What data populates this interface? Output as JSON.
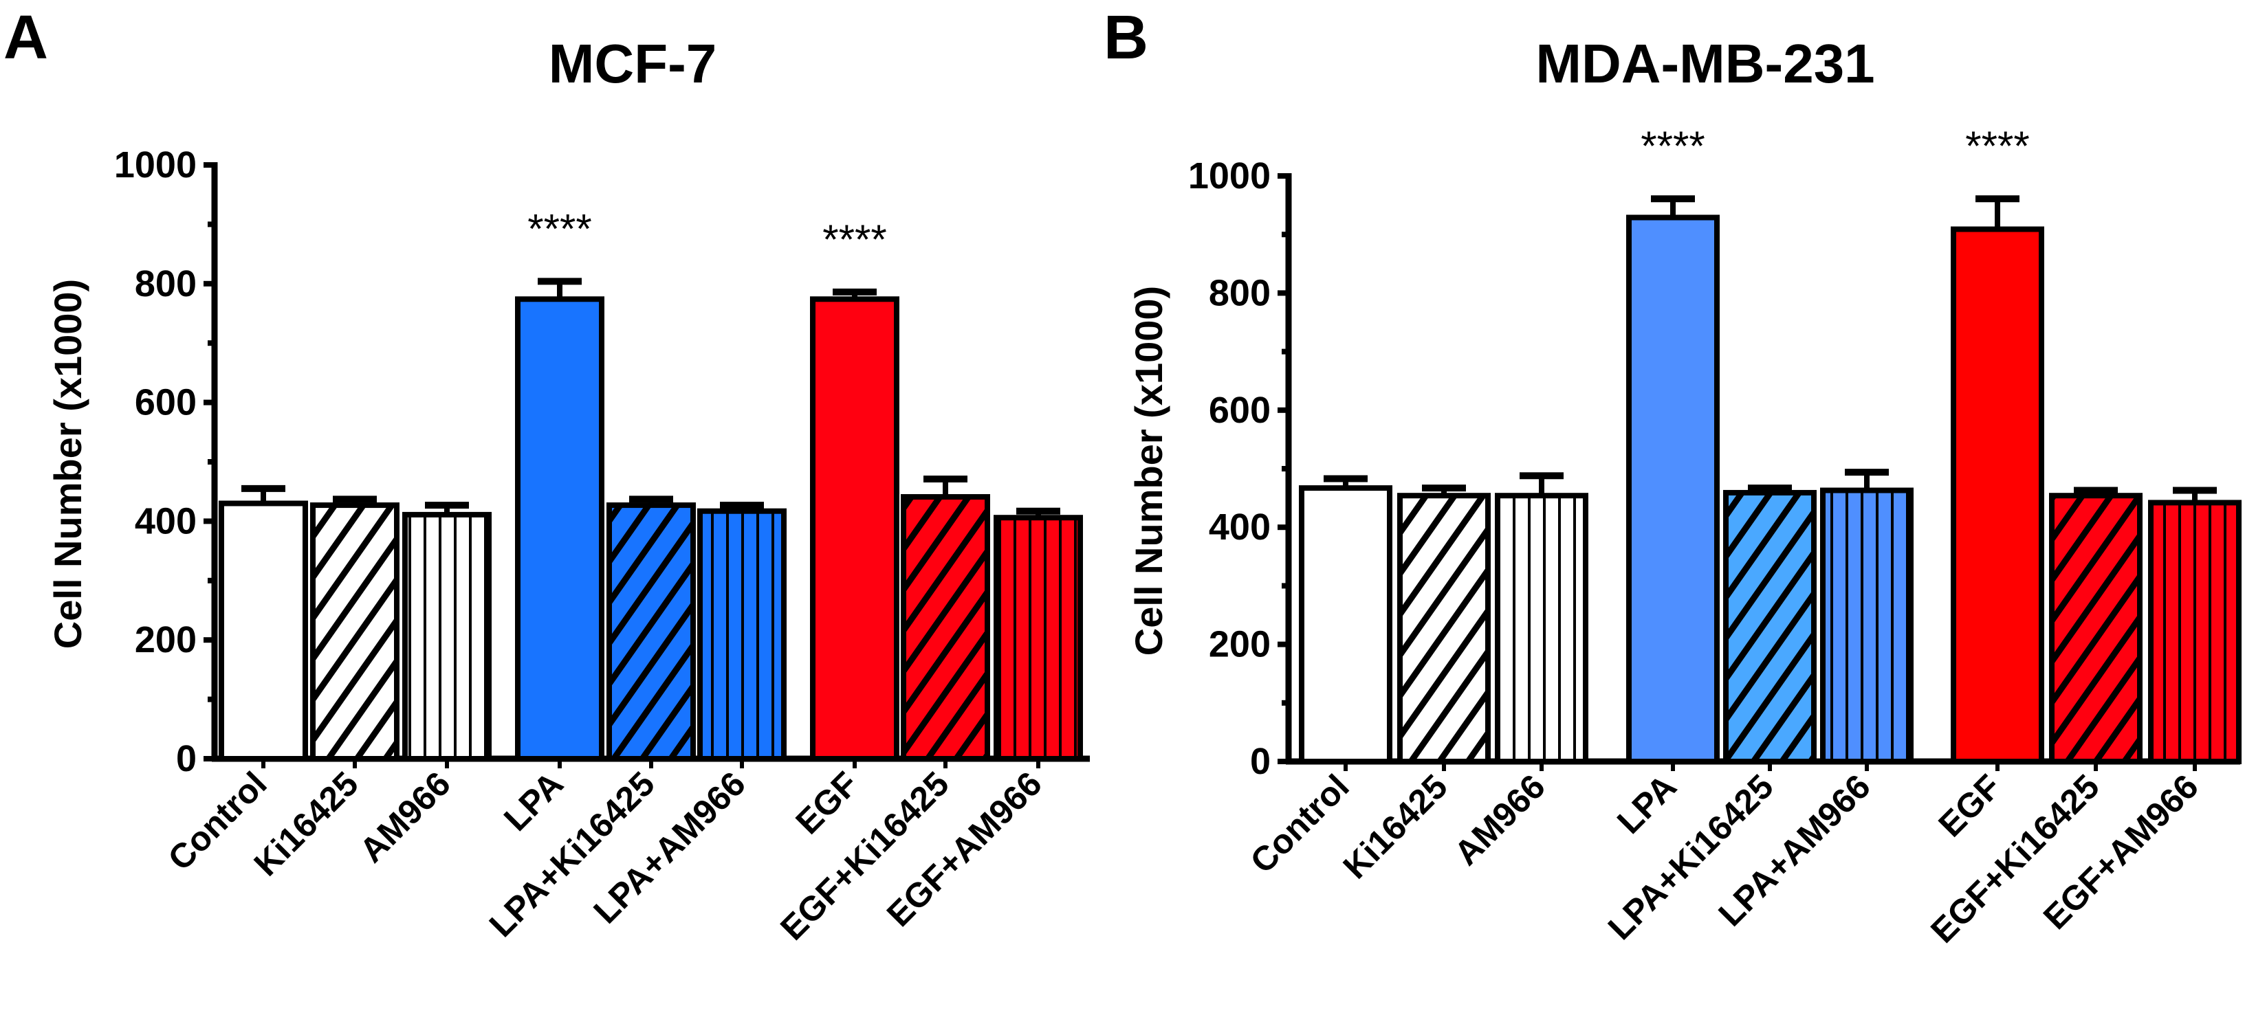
{
  "chart_data": [
    {
      "type": "bar",
      "panel_label": "A",
      "title": "MCF-7",
      "ylabel": "Cell Number (x1000)",
      "xlabel": "",
      "ylim": [
        0,
        1000
      ],
      "yticks": [
        0,
        200,
        400,
        600,
        800,
        1000
      ],
      "categories": [
        "Control",
        "Ki16425",
        "AM966",
        "LPA",
        "LPA+Ki16425",
        "LPA+AM966",
        "EGF",
        "EGF+Ki16425",
        "EGF+AM966"
      ],
      "values": [
        430,
        427,
        411,
        774,
        427,
        417,
        774,
        441,
        406
      ],
      "error_upper": [
        455,
        437,
        427,
        804,
        437,
        427,
        786,
        471,
        417
      ],
      "fills": [
        "#FFFFFF",
        "#FFFFFF",
        "#FFFFFF",
        "#1874FF",
        "#1874FF",
        "#1874FF",
        "#FF0010",
        "#FF0010",
        "#FF0010"
      ],
      "patterns": [
        "solid",
        "diagonal",
        "vertical",
        "solid",
        "diagonal",
        "vertical",
        "solid",
        "diagonal",
        "vertical"
      ],
      "annotations": [
        "",
        "",
        "",
        "****",
        "",
        "",
        "****",
        "",
        ""
      ]
    },
    {
      "type": "bar",
      "panel_label": "B",
      "title": "MDA-MB-231",
      "ylabel": "Cell Number (x1000)",
      "xlabel": "",
      "ylim": [
        0,
        1000
      ],
      "yticks": [
        0,
        200,
        400,
        600,
        800,
        1000
      ],
      "categories": [
        "Control",
        "Ki16425",
        "AM966",
        "LPA",
        "LPA+Ki16425",
        "LPA+AM966",
        "EGF",
        "EGF+Ki16425",
        "EGF+AM966"
      ],
      "values": [
        467,
        454,
        454,
        929,
        459,
        463,
        909,
        454,
        442
      ],
      "error_upper": [
        483,
        467,
        488,
        961,
        467,
        494,
        961,
        463,
        463
      ],
      "fills": [
        "#FFFFFF",
        "#FFFFFF",
        "#FFFFFF",
        "#4F8FFF",
        "#4AA8FF",
        "#4F8FFF",
        "#FF0000",
        "#FF0010",
        "#FF0010"
      ],
      "patterns": [
        "solid",
        "diagonal",
        "vertical",
        "solid",
        "diagonal",
        "vertical",
        "solid",
        "diagonal",
        "vertical"
      ],
      "annotations": [
        "",
        "",
        "",
        "****",
        "",
        "",
        "****",
        "",
        ""
      ]
    }
  ]
}
